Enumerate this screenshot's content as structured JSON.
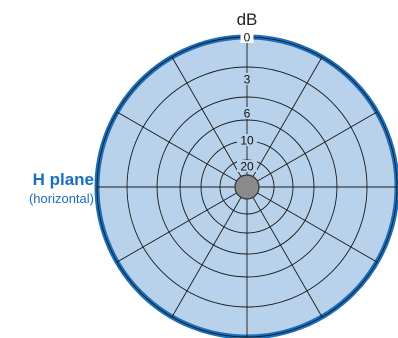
{
  "chart_data": {
    "type": "polar",
    "unit_label": "dB",
    "plane_label": "H plane",
    "plane_sublabel": "(horizontal)",
    "radial_ticks": [
      {
        "value": 0,
        "label": "0"
      },
      {
        "value": 3,
        "label": "3"
      },
      {
        "value": 6,
        "label": "6"
      },
      {
        "value": 10,
        "label": "10"
      },
      {
        "value": 20,
        "label": "20"
      }
    ],
    "angular_divisions_deg": 30,
    "pattern": {
      "description": "omnidirectional",
      "attenuation_db": 0
    },
    "colors": {
      "pattern_fill": "#b8d2ec",
      "pattern_stroke": "#1a6fbd",
      "grid": "#1a1a1a",
      "center_dot": "#8a8a8a",
      "plane_label": "#1a6fbd"
    }
  }
}
